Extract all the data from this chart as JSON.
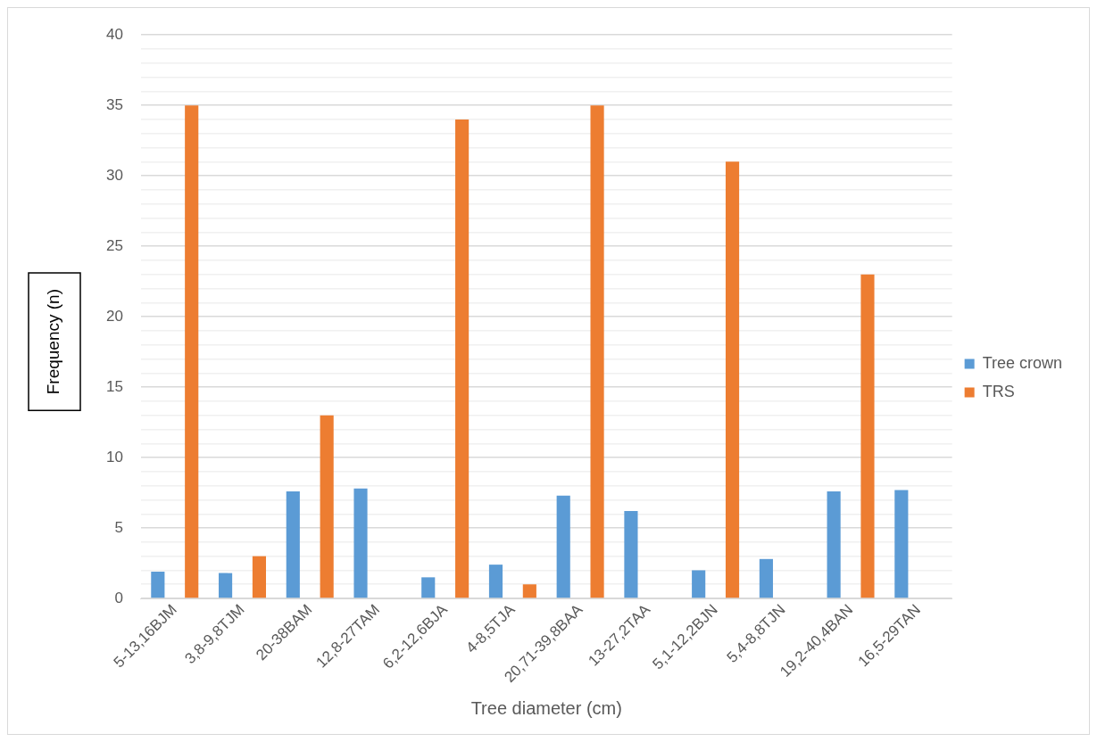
{
  "chart_data": {
    "type": "bar",
    "xlabel": "Tree diameter (cm)",
    "ylabel": "Frequency (n)",
    "categories": [
      "5-13,16BJM",
      "3,8-9,8TJM",
      "20-38BAM",
      "12,8-27TAM",
      "6,2-12,6BJA",
      "4-8,5TJA",
      "20,71-39,8BAA",
      "13-27,2TAA",
      "5,1-12,2BJN",
      "5,4-8,8TJN",
      "19,2-40,4BAN",
      "16,5-29TAN"
    ],
    "series": [
      {
        "name": "Tree crown",
        "color": "#5b9bd5",
        "values": [
          1.9,
          1.8,
          7.6,
          7.8,
          1.5,
          2.4,
          7.3,
          6.2,
          2.0,
          2.8,
          7.6,
          7.7
        ]
      },
      {
        "name": "TRS",
        "color": "#ed7d31",
        "values": [
          35,
          3,
          13,
          null,
          34,
          1,
          35,
          null,
          31,
          null,
          23,
          null
        ]
      }
    ],
    "ylim": [
      0,
      40
    ],
    "yticks": [
      0,
      {
        "value": 1,
        "label": null
      },
      {
        "value": 2,
        "label": null
      },
      {
        "value": 3,
        "label": null
      },
      {
        "value": 4,
        "label": null
      },
      5,
      {
        "value": 6,
        "label": null
      },
      {
        "value": 7,
        "label": null
      },
      {
        "value": 8,
        "label": null
      },
      {
        "value": 9,
        "label": null
      },
      10,
      {
        "value": 11,
        "label": null
      },
      {
        "value": 12,
        "label": null
      },
      {
        "value": 13,
        "label": null
      },
      {
        "value": 14,
        "label": null
      },
      15,
      {
        "value": 16,
        "label": null
      },
      {
        "value": 17,
        "label": null
      },
      {
        "value": 18,
        "label": null
      },
      {
        "value": 19,
        "label": null
      },
      20,
      {
        "value": 21,
        "label": null
      },
      {
        "value": 22,
        "label": null
      },
      {
        "value": 23,
        "label": null
      },
      {
        "value": 24,
        "label": null
      },
      25,
      {
        "value": 26,
        "label": null
      },
      {
        "value": 27,
        "label": null
      },
      {
        "value": 28,
        "label": null
      },
      {
        "value": 29,
        "label": null
      },
      30,
      {
        "value": 31,
        "label": null
      },
      {
        "value": 32,
        "label": null
      },
      {
        "value": 33,
        "label": null
      },
      {
        "value": 34,
        "label": null
      },
      35,
      {
        "value": 36,
        "label": null
      },
      {
        "value": 37,
        "label": null
      },
      {
        "value": 38,
        "label": null
      },
      {
        "value": 39,
        "label": null
      },
      40
    ],
    "grid": "y",
    "legend": "right"
  }
}
